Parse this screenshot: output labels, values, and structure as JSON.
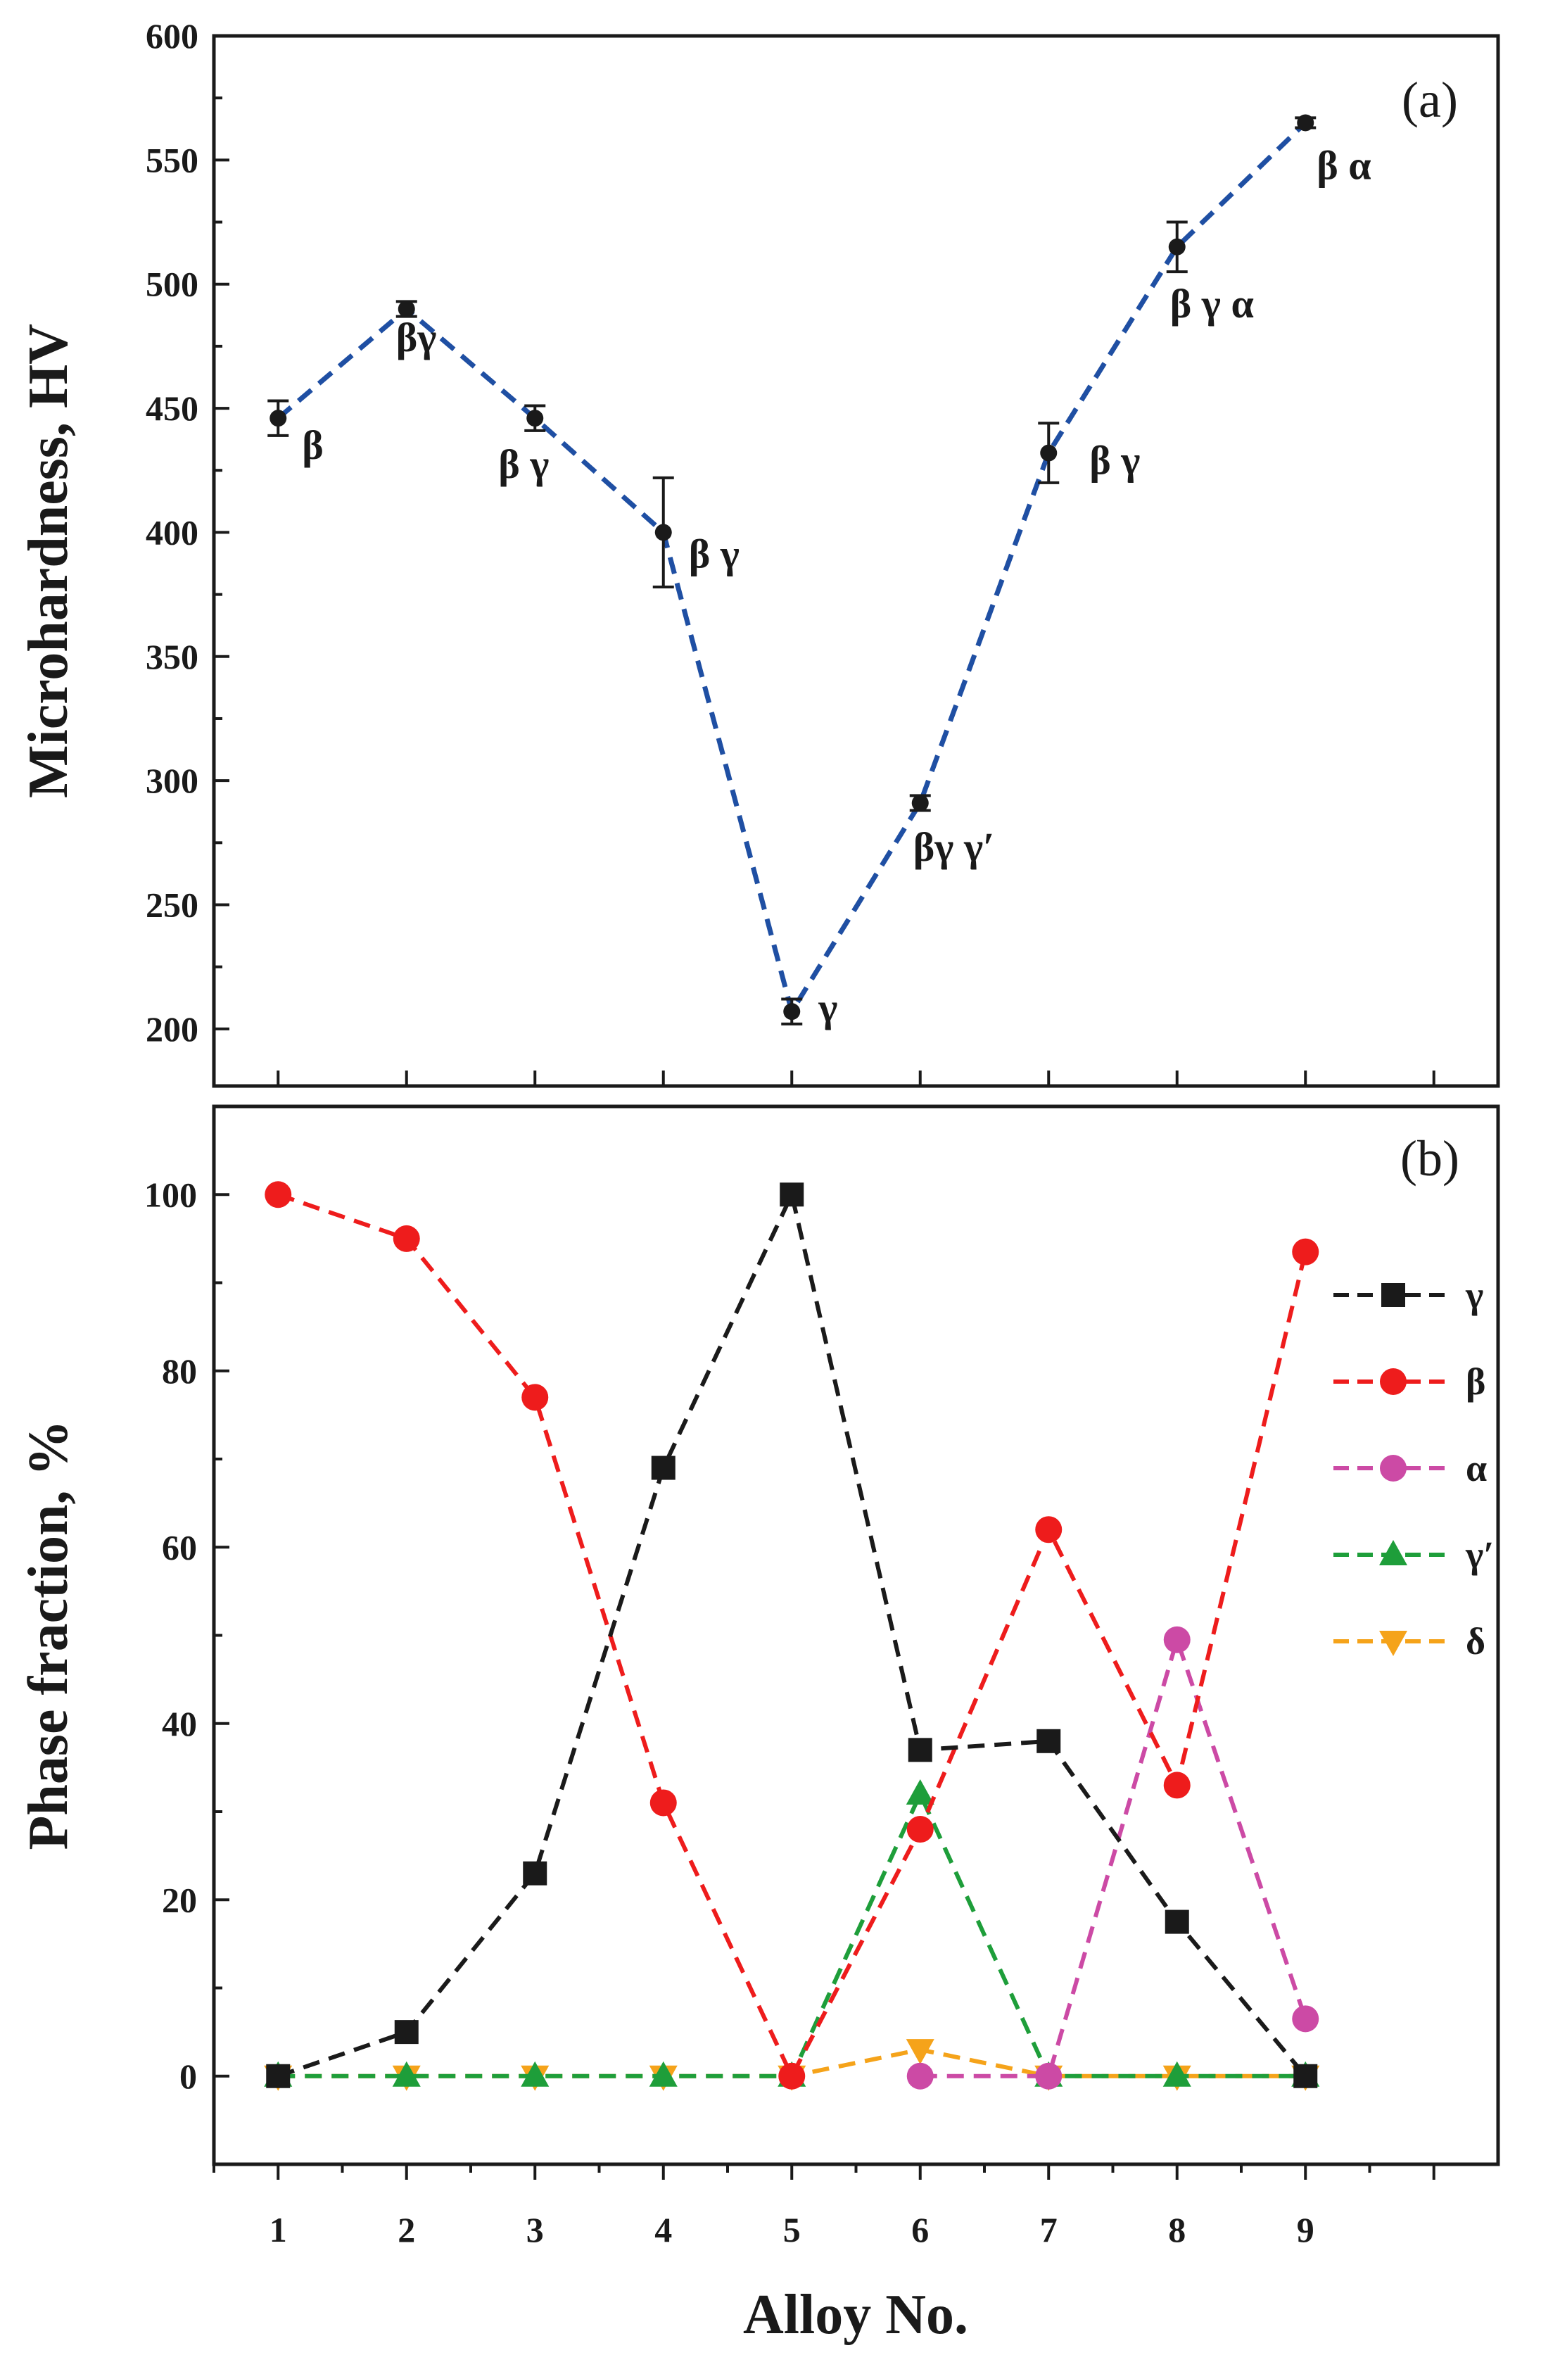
{
  "chart_data": [
    {
      "panel": "(a)",
      "type": "line",
      "xlabel": "Alloy No.",
      "ylabel": "Microhardness, HV",
      "x": [
        1,
        2,
        3,
        4,
        5,
        6,
        7,
        8,
        9
      ],
      "xlim": [
        0.5,
        10.5
      ],
      "ylim": [
        177,
        600
      ],
      "yticks": [
        200,
        250,
        300,
        350,
        400,
        450,
        500,
        550,
        600
      ],
      "series": [
        {
          "name": "Microhardness",
          "color": "#1f4fa3",
          "values": [
            446,
            490,
            446,
            400,
            207,
            291,
            432,
            515,
            565
          ],
          "errors": [
            7,
            3,
            5,
            22,
            5,
            3,
            12,
            10,
            2
          ]
        }
      ],
      "annotations": [
        {
          "x": 1,
          "text": "β"
        },
        {
          "x": 2,
          "text": "βγ"
        },
        {
          "x": 3,
          "text": "β γ"
        },
        {
          "x": 4,
          "text": "β γ"
        },
        {
          "x": 5,
          "text": "γ"
        },
        {
          "x": 6,
          "text": "βγ γ′"
        },
        {
          "x": 7,
          "text": "β γ"
        },
        {
          "x": 8,
          "text": "β γ α"
        },
        {
          "x": 9,
          "text": "β α"
        }
      ]
    },
    {
      "panel": "(b)",
      "type": "line",
      "xlabel": "Alloy No.",
      "ylabel": "Phase fraction, %",
      "x": [
        1,
        2,
        3,
        4,
        5,
        6,
        7,
        8,
        9
      ],
      "xlim": [
        0.5,
        10.5
      ],
      "ylim": [
        -10,
        110
      ],
      "yticks": [
        0,
        20,
        40,
        60,
        80,
        100
      ],
      "xticks": [
        1,
        2,
        3,
        4,
        5,
        6,
        7,
        8,
        9
      ],
      "legend": "right",
      "series": [
        {
          "name": "γ",
          "marker": "square",
          "color": "#1a1a1a",
          "x": [
            1,
            2,
            3,
            4,
            5,
            6,
            7,
            8,
            9
          ],
          "values": [
            0,
            5,
            23,
            69,
            100,
            37,
            38,
            17.5,
            0
          ]
        },
        {
          "name": "β",
          "marker": "circle",
          "color": "#ee1c1c",
          "x": [
            1,
            2,
            3,
            4,
            5,
            6,
            7,
            8,
            9
          ],
          "values": [
            100,
            95,
            77,
            31,
            0,
            28,
            62,
            33,
            93.5
          ]
        },
        {
          "name": "α",
          "marker": "circle",
          "color": "#cc4aa5",
          "x": [
            6,
            7,
            8,
            9
          ],
          "values": [
            0,
            0,
            49.5,
            6.5
          ]
        },
        {
          "name": "γ′",
          "marker": "triangle-up",
          "color": "#1e9e3a",
          "x": [
            1,
            2,
            3,
            4,
            5,
            6,
            7,
            8,
            9
          ],
          "values": [
            0,
            0,
            0,
            0,
            0,
            32,
            0,
            0,
            0
          ]
        },
        {
          "name": "δ",
          "marker": "triangle-down",
          "color": "#f5a31a",
          "x": [
            1,
            2,
            3,
            4,
            5,
            6,
            7,
            8,
            9
          ],
          "values": [
            0,
            0,
            0,
            0,
            0,
            3,
            0,
            0,
            0
          ]
        }
      ]
    }
  ]
}
